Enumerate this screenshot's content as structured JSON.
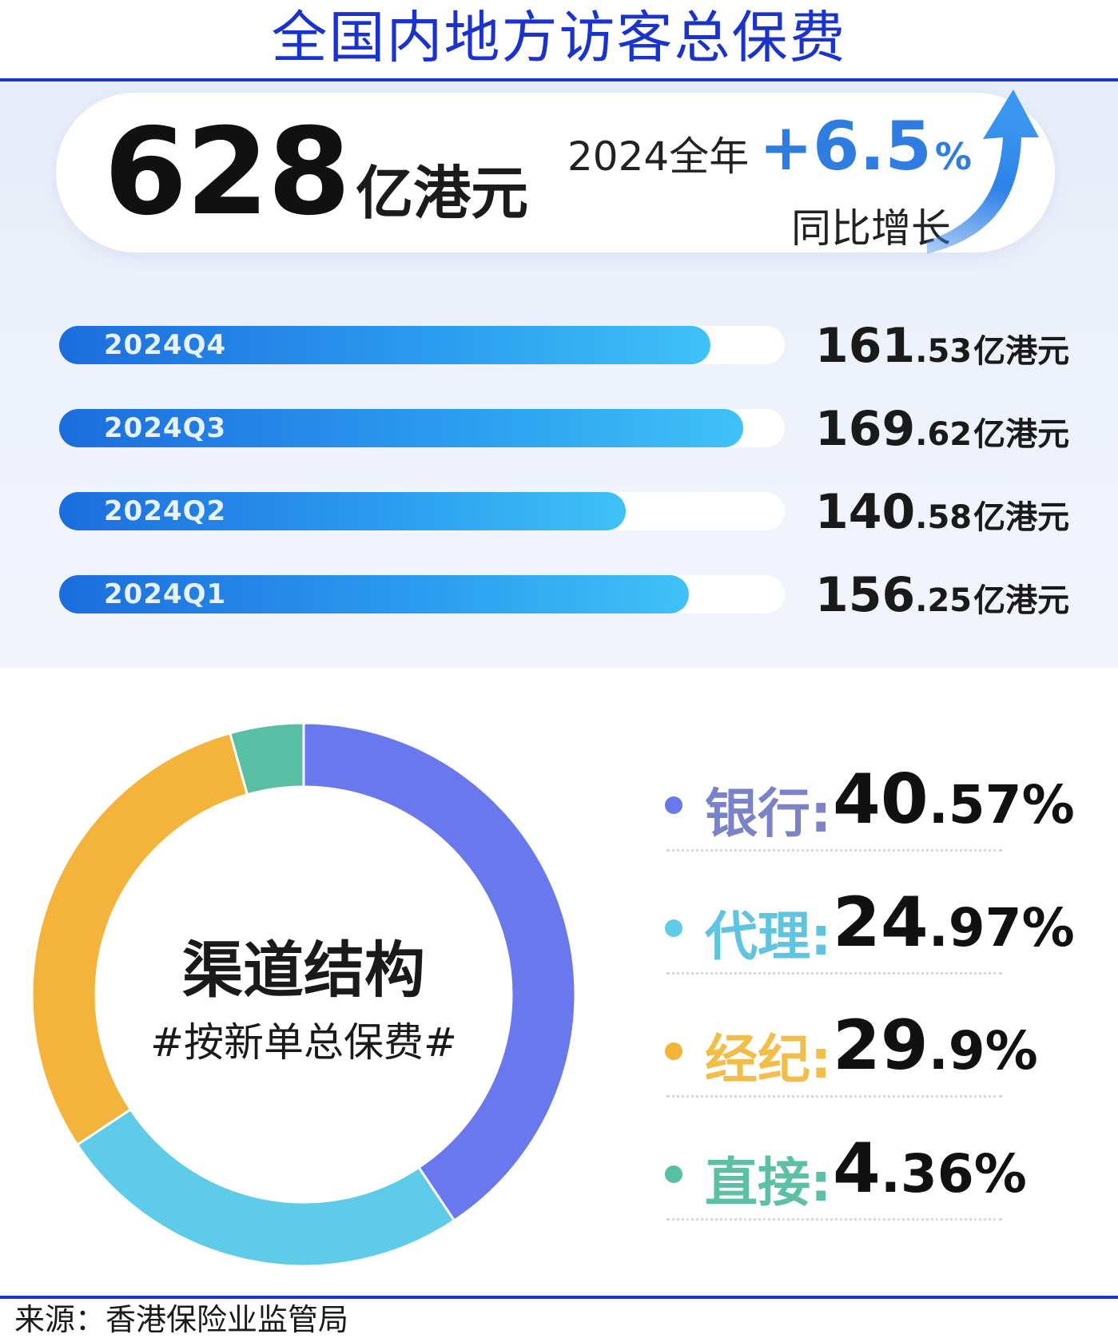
{
  "title": "全国内地方访客总保费",
  "headline": {
    "total_value": "628",
    "total_unit": "亿港元",
    "year_label": "2024全年",
    "growth_sign": "+",
    "growth_value": "6.5",
    "growth_pct_sign": "%",
    "growth_caption": "同比增长"
  },
  "quarters": [
    {
      "label": "2024Q4",
      "int": "161",
      "dec": ".53",
      "unit": "亿港元"
    },
    {
      "label": "2024Q3",
      "int": "169",
      "dec": ".62",
      "unit": "亿港元"
    },
    {
      "label": "2024Q2",
      "int": "140",
      "dec": ".58",
      "unit": "亿港元"
    },
    {
      "label": "2024Q1",
      "int": "156",
      "dec": ".25",
      "unit": "亿港元"
    }
  ],
  "donut": {
    "title": "渠道结构",
    "subtitle": "#按新单总保费#"
  },
  "legend": [
    {
      "name": "银行:",
      "int": "40",
      "dec": ".57%"
    },
    {
      "name": "代理:",
      "int": "24",
      "dec": ".97%"
    },
    {
      "name": "经纪:",
      "int": "29",
      "dec": ".9%"
    },
    {
      "name": "直接:",
      "int": "4",
      "dec": ".36%"
    }
  ],
  "source": "来源：香港保险业监管局",
  "colors": {
    "title": "#1a33cc",
    "growth": "#2f7de0",
    "bank": "#6a78ee",
    "agency": "#5ecbe8",
    "broker": "#f4b33a",
    "direct": "#58bfa4"
  },
  "chart_data": [
    {
      "type": "bar",
      "orientation": "horizontal",
      "categories": [
        "2024Q4",
        "2024Q3",
        "2024Q2",
        "2024Q1"
      ],
      "values": [
        161.53,
        169.62,
        140.58,
        156.25
      ],
      "unit": "亿港元",
      "title": "",
      "total": 628,
      "yoy_growth_pct": 6.5
    },
    {
      "type": "pie",
      "donut": true,
      "title": "渠道结构",
      "subtitle": "#按新单总保费#",
      "categories": [
        "银行",
        "代理",
        "经纪",
        "直接"
      ],
      "values": [
        40.57,
        24.97,
        29.9,
        4.36
      ],
      "order": "clockwise from top: 银行, 代理, 经纪, 直接",
      "colors": [
        "#6a78ee",
        "#5ecbe8",
        "#f4b33a",
        "#58bfa4"
      ]
    }
  ]
}
